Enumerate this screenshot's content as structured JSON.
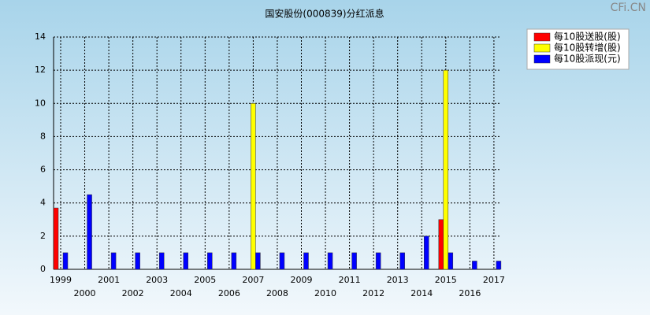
{
  "chart_data": {
    "type": "bar",
    "title": "国安股份(000839)分红派息",
    "watermark": "CFi.CN",
    "categories": [
      "1999",
      "2000",
      "2001",
      "2002",
      "2003",
      "2004",
      "2005",
      "2006",
      "2007",
      "2008",
      "2009",
      "2010",
      "2011",
      "2012",
      "2013",
      "2014",
      "2015",
      "2016",
      "2017"
    ],
    "series": [
      {
        "name": "每10股送股(股)",
        "color": "#ff0000",
        "values": [
          3.7,
          null,
          null,
          null,
          null,
          null,
          null,
          null,
          null,
          null,
          null,
          null,
          null,
          null,
          null,
          null,
          3,
          null,
          null
        ]
      },
      {
        "name": "每10股转增(股)",
        "color": "#ffff00",
        "values": [
          null,
          null,
          null,
          null,
          null,
          null,
          null,
          null,
          10,
          null,
          null,
          null,
          null,
          null,
          null,
          null,
          12,
          null,
          null
        ]
      },
      {
        "name": "每10股派现(元)",
        "color": "#0000ff",
        "values": [
          1,
          4.5,
          1,
          1,
          1,
          1,
          1,
          1,
          1,
          1,
          1,
          1,
          1,
          1,
          1,
          2,
          1,
          0.5,
          0.5
        ]
      }
    ],
    "ylim": [
      0,
      14
    ],
    "yticks": [
      0,
      2,
      4,
      6,
      8,
      10,
      12,
      14
    ],
    "grid": true,
    "legend": "top-right"
  }
}
